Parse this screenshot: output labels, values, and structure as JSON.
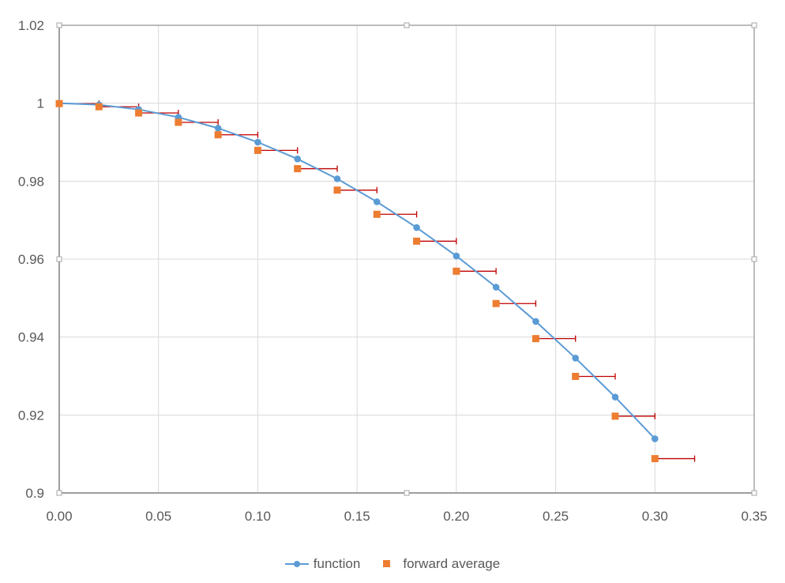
{
  "chart_data": {
    "type": "scatter",
    "title": "",
    "xlabel": "",
    "ylabel": "",
    "xlim": [
      0,
      0.35
    ],
    "ylim": [
      0.9,
      1.02
    ],
    "x_ticks": [
      "0.00",
      "0.05",
      "0.10",
      "0.15",
      "0.20",
      "0.25",
      "0.30",
      "0.35"
    ],
    "y_ticks": [
      "0.9",
      "0.92",
      "0.94",
      "0.96",
      "0.98",
      "1",
      "1.02"
    ],
    "grid": true,
    "legend_position": "bottom",
    "series": [
      {
        "name": "function",
        "style": "line-with-markers",
        "color": "#5B9BD5",
        "x": [
          0,
          0.02,
          0.04,
          0.06,
          0.08,
          0.1,
          0.12,
          0.14,
          0.16,
          0.18,
          0.2,
          0.22,
          0.24,
          0.26,
          0.28,
          0.3
        ],
        "values": [
          1.0,
          0.9996,
          0.9984,
          0.9964,
          0.9936,
          0.99,
          0.9857,
          0.9806,
          0.9747,
          0.9681,
          0.9608,
          0.9528,
          0.944,
          0.9346,
          0.9246,
          0.9139
        ]
      },
      {
        "name": "forward average",
        "style": "square-markers-with-x-error-bars",
        "color": "#ED7D31",
        "error_bar_color": "#C00000",
        "x_error_plus": 0.02,
        "x": [
          0,
          0.02,
          0.04,
          0.06,
          0.08,
          0.1,
          0.12,
          0.14,
          0.16,
          0.18,
          0.2,
          0.22,
          0.24,
          0.26,
          0.28,
          0.3
        ],
        "values": [
          0.9999,
          0.9991,
          0.9975,
          0.9951,
          0.9919,
          0.9879,
          0.9832,
          0.9777,
          0.9715,
          0.9646,
          0.9569,
          0.9486,
          0.9396,
          0.9299,
          0.9197,
          0.9088
        ]
      }
    ]
  },
  "legend": {
    "function_label": "function",
    "forward_label": "forward average"
  }
}
